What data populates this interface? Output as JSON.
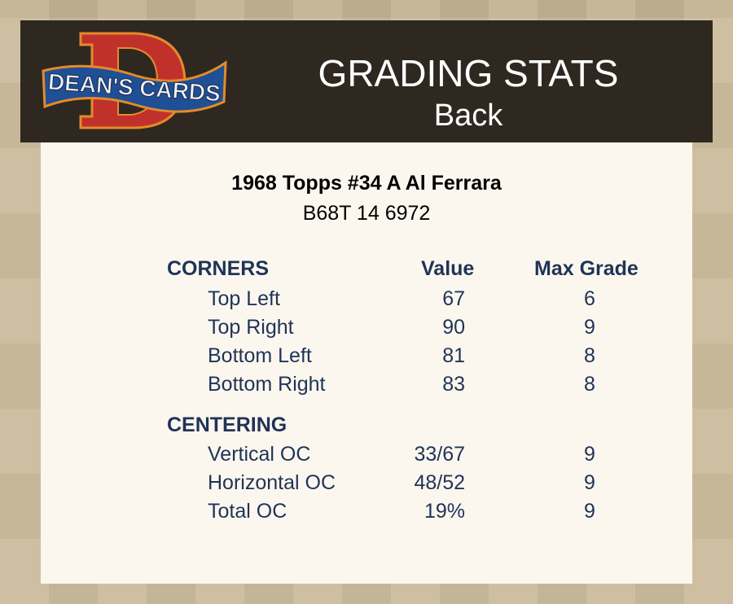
{
  "header": {
    "logo_text": "DEAN'S CARDS",
    "title": "GRADING STATS",
    "subtitle": "Back"
  },
  "card": {
    "name": "1968 Topps #34 A Al Ferrara",
    "cert": "B68T 14 6972"
  },
  "columns": {
    "value": "Value",
    "max_grade": "Max Grade"
  },
  "sections": [
    {
      "title": "CORNERS",
      "rows": [
        {
          "label": "Top Left",
          "value": "67",
          "max": "6"
        },
        {
          "label": "Top Right",
          "value": "90",
          "max": "9"
        },
        {
          "label": "Bottom Left",
          "value": "81",
          "max": "8"
        },
        {
          "label": "Bottom Right",
          "value": "83",
          "max": "8"
        }
      ]
    },
    {
      "title": "CENTERING",
      "rows": [
        {
          "label": "Vertical OC",
          "value": "33/67",
          "max": "9"
        },
        {
          "label": "Horizontal OC",
          "value": "48/52",
          "max": "9"
        },
        {
          "label": "Total OC",
          "value": "19%",
          "max": "9"
        }
      ]
    }
  ],
  "colors": {
    "header_bg": "#2e2820",
    "panel_bg": "#fcf7ee",
    "text": "#1f3358",
    "logo_red": "#c0312b",
    "logo_blue": "#1f4f95"
  }
}
